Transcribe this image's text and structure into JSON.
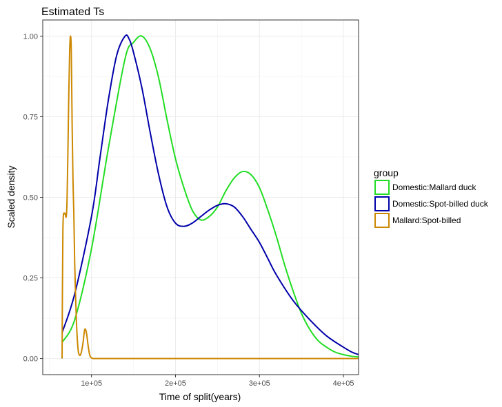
{
  "chart_data": {
    "type": "line",
    "title": "Estimated Ts",
    "xlabel": "Time of split(years)",
    "ylabel": "Scaled density",
    "xlim": [
      42000,
      418000
    ],
    "ylim": [
      -0.05,
      1.05
    ],
    "x_ticks": [
      {
        "value": 100000,
        "label": "1e+05"
      },
      {
        "value": 200000,
        "label": "2e+05"
      },
      {
        "value": 300000,
        "label": "3e+05"
      },
      {
        "value": 400000,
        "label": "4e+05"
      }
    ],
    "y_ticks": [
      {
        "value": 0.0,
        "label": "0.00"
      },
      {
        "value": 0.25,
        "label": "0.25"
      },
      {
        "value": 0.5,
        "label": "0.50"
      },
      {
        "value": 0.75,
        "label": "0.75"
      },
      {
        "value": 1.0,
        "label": "1.00"
      }
    ],
    "grid": true,
    "legend": {
      "title": "group",
      "placement": "right"
    },
    "series": [
      {
        "name": "Domestic:Mallard duck",
        "color": "#22dd22",
        "x": [
          65000,
          80000,
          100000,
          120000,
          140000,
          150000,
          160000,
          170000,
          180000,
          190000,
          200000,
          210000,
          220000,
          230000,
          240000,
          250000,
          260000,
          270000,
          280000,
          290000,
          300000,
          310000,
          320000,
          330000,
          340000,
          350000,
          360000,
          370000,
          380000,
          390000,
          400000,
          410000,
          418000
        ],
        "values": [
          0.05,
          0.12,
          0.34,
          0.65,
          0.93,
          0.98,
          1.0,
          0.96,
          0.87,
          0.74,
          0.62,
          0.53,
          0.46,
          0.43,
          0.44,
          0.47,
          0.52,
          0.56,
          0.58,
          0.57,
          0.53,
          0.46,
          0.38,
          0.29,
          0.21,
          0.14,
          0.09,
          0.055,
          0.035,
          0.02,
          0.012,
          0.007,
          0.005
        ]
      },
      {
        "name": "Domestic:Spot-billed duck",
        "color": "#0000aa",
        "x": [
          65000,
          80000,
          100000,
          110000,
          120000,
          130000,
          140000,
          145000,
          150000,
          160000,
          170000,
          180000,
          190000,
          200000,
          210000,
          220000,
          230000,
          240000,
          250000,
          260000,
          270000,
          280000,
          290000,
          300000,
          310000,
          320000,
          340000,
          360000,
          380000,
          400000,
          410000,
          418000
        ],
        "values": [
          0.08,
          0.2,
          0.44,
          0.62,
          0.8,
          0.94,
          1.0,
          0.99,
          0.95,
          0.84,
          0.7,
          0.57,
          0.47,
          0.42,
          0.41,
          0.42,
          0.44,
          0.46,
          0.475,
          0.48,
          0.47,
          0.44,
          0.4,
          0.36,
          0.31,
          0.26,
          0.18,
          0.12,
          0.07,
          0.035,
          0.02,
          0.012
        ]
      },
      {
        "name": "Mallard:Spot-billed",
        "color": "#cc8800",
        "x": [
          65000,
          66000,
          68000,
          70000,
          71000,
          72000,
          73000,
          74000,
          75000,
          76000,
          77000,
          78000,
          79000,
          80000,
          82000,
          84000,
          86000,
          88000,
          90000,
          92000,
          94000,
          96000,
          98000,
          100000,
          102000,
          104000,
          106000,
          110000,
          150000,
          200000,
          300000,
          418000
        ],
        "values": [
          0.0,
          0.4,
          0.45,
          0.44,
          0.5,
          0.65,
          0.82,
          0.95,
          1.0,
          0.95,
          0.72,
          0.55,
          0.45,
          0.3,
          0.12,
          0.03,
          0.01,
          0.02,
          0.05,
          0.09,
          0.08,
          0.04,
          0.01,
          0.002,
          0.0,
          0.0,
          0.0,
          0.0,
          0.0,
          0.0,
          0.0,
          0.0
        ]
      }
    ]
  }
}
